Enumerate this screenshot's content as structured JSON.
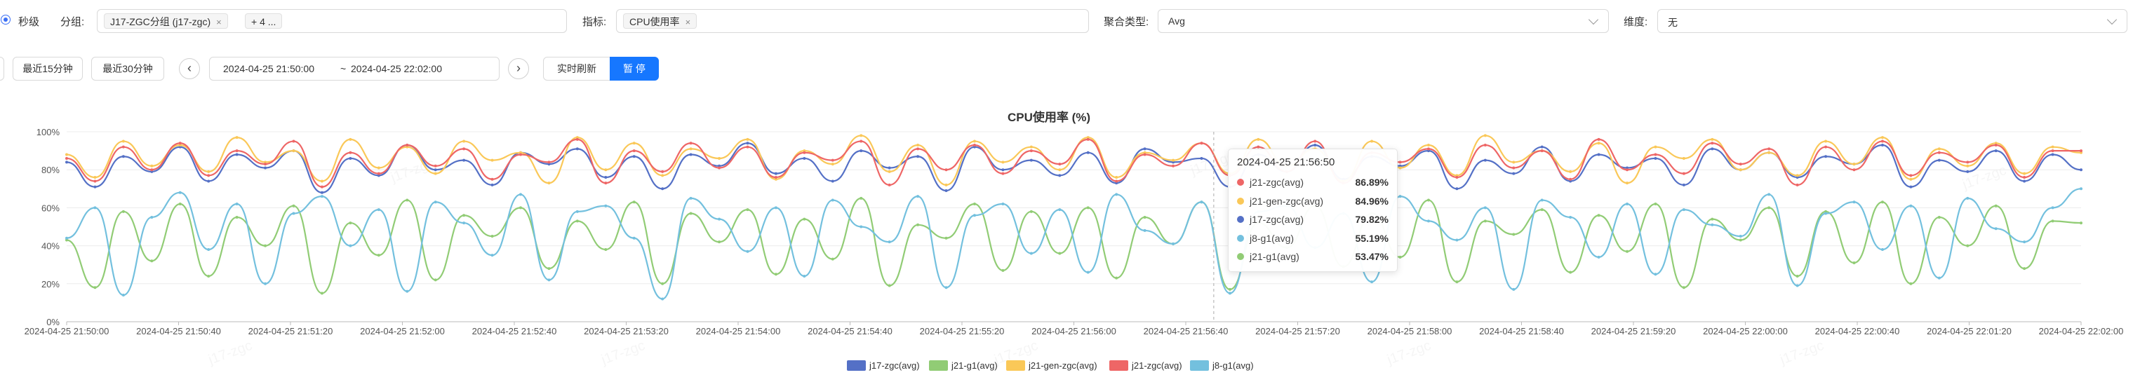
{
  "filters": {
    "granularity_label": "秒级",
    "group_label": "分组:",
    "group_tag": "J17-ZGC分组 (j17-zgc)",
    "group_more": "+ 4 ...",
    "metric_label": "指标:",
    "metric_tag": "CPU使用率",
    "agg_label": "聚合类型:",
    "agg_value": "Avg",
    "dim_label": "维度:",
    "dim_value": "无"
  },
  "toolbar": {
    "last15": "最近15分钟",
    "last30": "最近30分钟",
    "prev": "‹",
    "next": "›",
    "range_start": "2024-04-25 21:50:00",
    "range_sep": "~",
    "range_end": "2024-04-25 22:02:00",
    "realtime": "实时刷新",
    "pause": "暂 停"
  },
  "tooltip": {
    "time": "2024-04-25 21:56:50",
    "rows": [
      {
        "name": "j21-zgc(avg)",
        "value": "86.89%",
        "color": "#ee6666"
      },
      {
        "name": "j21-gen-zgc(avg)",
        "value": "84.96%",
        "color": "#fac858"
      },
      {
        "name": "j17-zgc(avg)",
        "value": "79.82%",
        "color": "#5470c6"
      },
      {
        "name": "j8-g1(avg)",
        "value": "55.19%",
        "color": "#73c0de"
      },
      {
        "name": "j21-g1(avg)",
        "value": "53.47%",
        "color": "#91cc75"
      }
    ]
  },
  "chart_data": {
    "type": "line",
    "title": "CPU使用率 (%)",
    "xlabel": "",
    "ylabel": "",
    "ylim": [
      0,
      100
    ],
    "y_ticks": [
      "0%",
      "20%",
      "40%",
      "60%",
      "80%",
      "100%"
    ],
    "x_ticks": [
      "2024-04-25 21:50:00",
      "2024-04-25 21:50:40",
      "2024-04-25 21:51:20",
      "2024-04-25 21:52:00",
      "2024-04-25 21:52:40",
      "2024-04-25 21:53:20",
      "2024-04-25 21:54:00",
      "2024-04-25 21:54:40",
      "2024-04-25 21:55:20",
      "2024-04-25 21:56:00",
      "2024-04-25 21:56:40",
      "2024-04-25 21:57:20",
      "2024-04-25 21:58:00",
      "2024-04-25 21:58:40",
      "2024-04-25 21:59:20",
      "2024-04-25 22:00:00",
      "2024-04-25 22:00:40",
      "2024-04-25 22:01:20",
      "2024-04-25 22:02:00"
    ],
    "grid": true,
    "legend_position": "bottom",
    "hover_time": "2024-04-25 21:56:50",
    "series": [
      {
        "name": "j17-zgc(avg)",
        "color": "#5470c6",
        "values": [
          84,
          71,
          87,
          79,
          92,
          74,
          88,
          81,
          90,
          68,
          86,
          77,
          93,
          80,
          85,
          72,
          89,
          83,
          91,
          76,
          87,
          70,
          88,
          82,
          94,
          78,
          86,
          74,
          90,
          81,
          87,
          69,
          92,
          80,
          85,
          77,
          89,
          73,
          91,
          84,
          86,
          71,
          88,
          79,
          93,
          75,
          87,
          82,
          90,
          70,
          85,
          78,
          92,
          74,
          88,
          81,
          86,
          72,
          91,
          80,
          89,
          76,
          87,
          83,
          93,
          71,
          85,
          79,
          90,
          74,
          88,
          80
        ]
      },
      {
        "name": "j21-g1(avg)",
        "color": "#91cc75",
        "values": [
          43,
          18,
          58,
          32,
          62,
          24,
          55,
          40,
          61,
          15,
          52,
          35,
          64,
          22,
          56,
          45,
          60,
          28,
          53,
          38,
          63,
          20,
          57,
          42,
          59,
          25,
          54,
          33,
          65,
          19,
          51,
          44,
          62,
          27,
          58,
          36,
          60,
          23,
          55,
          41,
          63,
          17,
          52,
          39,
          61,
          29,
          57,
          34,
          64,
          21,
          53,
          46,
          59,
          26,
          56,
          37,
          62,
          18,
          54,
          43,
          60,
          24,
          58,
          31,
          63,
          20,
          55,
          40,
          61,
          28,
          53,
          52
        ]
      },
      {
        "name": "j21-gen-zgc(avg)",
        "color": "#fac858",
        "values": [
          88,
          76,
          95,
          82,
          93,
          79,
          97,
          84,
          90,
          74,
          96,
          81,
          92,
          78,
          95,
          85,
          89,
          73,
          97,
          80,
          94,
          77,
          91,
          86,
          96,
          75,
          90,
          83,
          98,
          79,
          93,
          72,
          95,
          84,
          92,
          80,
          97,
          76,
          89,
          85,
          94,
          78,
          96,
          82,
          91,
          74,
          95,
          81,
          93,
          77,
          98,
          84,
          90,
          79,
          94,
          73,
          92,
          86,
          96,
          80,
          89,
          77,
          95,
          83,
          97,
          75,
          91,
          82,
          94,
          78,
          92,
          89
        ]
      },
      {
        "name": "j21-zgc(avg)",
        "color": "#ee6666",
        "values": [
          86,
          74,
          92,
          80,
          94,
          77,
          90,
          83,
          95,
          71,
          89,
          78,
          93,
          82,
          91,
          75,
          88,
          84,
          96,
          73,
          90,
          79,
          94,
          81,
          92,
          76,
          89,
          85,
          95,
          72,
          91,
          80,
          93,
          78,
          90,
          83,
          96,
          74,
          88,
          82,
          94,
          77,
          92,
          79,
          95,
          73,
          89,
          84,
          91,
          76,
          93,
          81,
          90,
          75,
          96,
          80,
          88,
          78,
          94,
          83,
          91,
          72,
          92,
          80,
          95,
          77,
          89,
          84,
          93,
          76,
          90,
          90
        ]
      },
      {
        "name": "j8-g1(avg)",
        "color": "#73c0de",
        "values": [
          44,
          60,
          14,
          55,
          68,
          38,
          62,
          20,
          57,
          66,
          40,
          59,
          16,
          63,
          52,
          35,
          67,
          22,
          58,
          61,
          44,
          12,
          65,
          54,
          37,
          60,
          24,
          64,
          50,
          42,
          66,
          18,
          56,
          62,
          36,
          59,
          26,
          67,
          48,
          41,
          63,
          15,
          58,
          61,
          39,
          57,
          21,
          66,
          53,
          43,
          60,
          17,
          64,
          55,
          34,
          62,
          25,
          59,
          51,
          45,
          67,
          19,
          57,
          63,
          38,
          61,
          23,
          65,
          49,
          42,
          60,
          70
        ]
      }
    ]
  },
  "watermarks": [
    "j17-zgc",
    "j17-zgc",
    "j17-zgc",
    "j17-zgc",
    "j17-zgc",
    "j17-zgc",
    "j17-zgc",
    "j17-zgc"
  ]
}
